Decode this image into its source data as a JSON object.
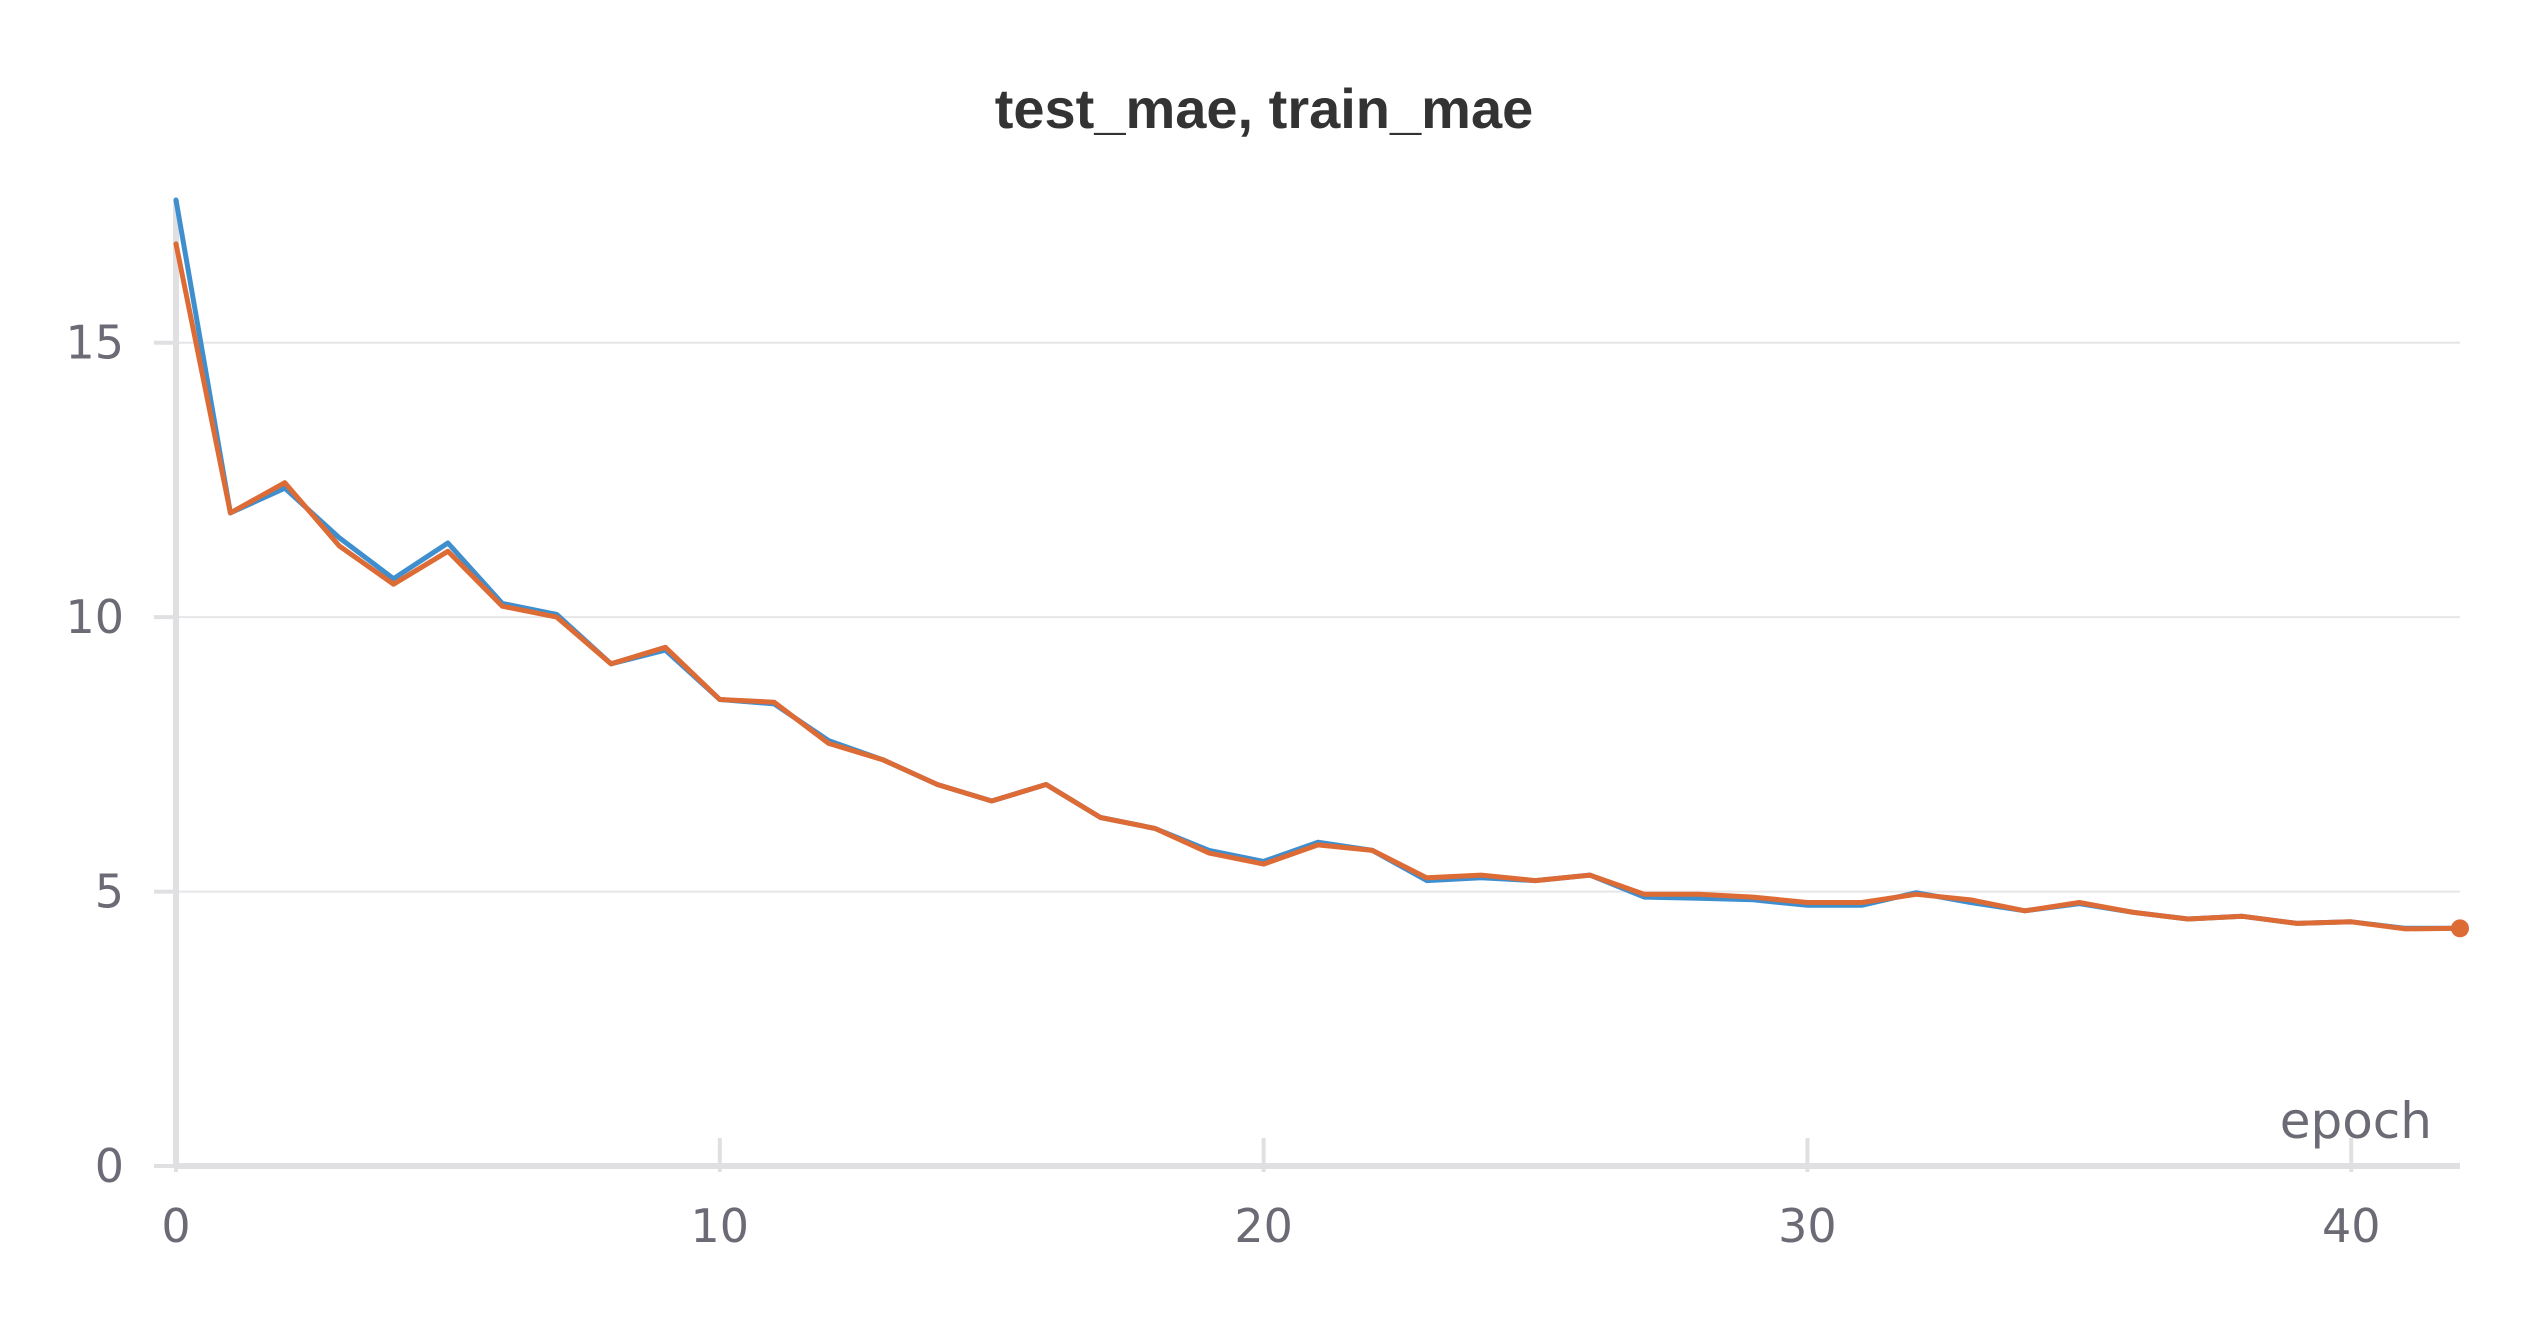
{
  "chart_data": {
    "type": "line",
    "title": "test_mae, train_mae",
    "xlabel": "epoch",
    "ylabel": "",
    "xlim": [
      0,
      42
    ],
    "ylim": [
      0,
      17.6
    ],
    "xticks": [
      0,
      10,
      20,
      30,
      40
    ],
    "yticks": [
      0,
      5,
      10,
      15
    ],
    "grid": "horizontal",
    "legend": "none",
    "x": [
      0,
      1,
      2,
      3,
      4,
      5,
      6,
      7,
      8,
      9,
      10,
      11,
      12,
      13,
      14,
      15,
      16,
      17,
      18,
      19,
      20,
      21,
      22,
      23,
      24,
      25,
      26,
      27,
      28,
      29,
      30,
      31,
      32,
      33,
      34,
      35,
      36,
      37,
      38,
      39,
      40,
      41,
      42
    ],
    "series": [
      {
        "color": "#3f8fcf",
        "values": [
          17.6,
          11.9,
          12.35,
          11.45,
          10.7,
          11.35,
          10.25,
          10.05,
          9.15,
          9.4,
          8.5,
          8.42,
          7.75,
          7.4,
          6.95,
          6.65,
          6.95,
          6.35,
          6.15,
          5.75,
          5.55,
          5.9,
          5.75,
          5.2,
          5.25,
          5.2,
          5.3,
          4.9,
          4.88,
          4.85,
          4.75,
          4.75,
          4.98,
          4.8,
          4.65,
          4.78,
          4.62,
          4.5,
          4.55,
          4.42,
          4.45,
          4.33,
          4.33
        ]
      },
      {
        "color": "#dd6b35",
        "values": [
          16.8,
          11.9,
          12.45,
          11.3,
          10.6,
          11.2,
          10.2,
          10.0,
          9.15,
          9.45,
          8.5,
          8.45,
          7.7,
          7.4,
          6.95,
          6.65,
          6.95,
          6.35,
          6.15,
          5.7,
          5.5,
          5.85,
          5.75,
          5.25,
          5.3,
          5.2,
          5.3,
          4.95,
          4.95,
          4.9,
          4.8,
          4.8,
          4.95,
          4.85,
          4.65,
          4.8,
          4.62,
          4.5,
          4.55,
          4.42,
          4.45,
          4.32,
          4.33
        ]
      }
    ]
  }
}
